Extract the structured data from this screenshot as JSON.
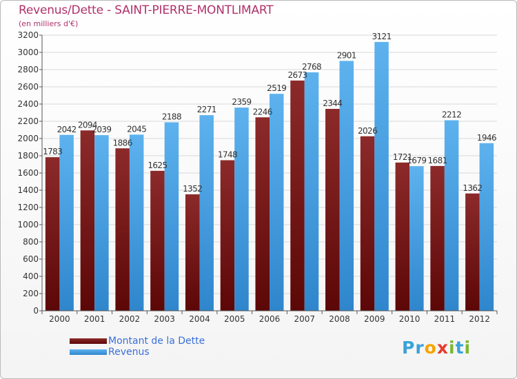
{
  "title": "Revenus/Dette - SAINT-PIERRE-MONTLIMART",
  "subtitle": "(en milliers d'€)",
  "colors": {
    "title": "#b0306a",
    "dette": "#7a1616",
    "revenus": "#3f9fe3",
    "legend_text": "#3a6fd8",
    "axis": "#555555",
    "grid": "#d8d8d8"
  },
  "legend": {
    "dette_label": "Montant de la Dette",
    "revenus_label": "Revenus"
  },
  "logo": {
    "letters": [
      "P",
      "r",
      "o",
      "x",
      "i",
      "t",
      "i"
    ],
    "colors": [
      "#3aa2d8",
      "#3aa2d8",
      "#f6a400",
      "#e53c2e",
      "#7cb82f",
      "#3aa2d8",
      "#7cb82f"
    ]
  },
  "chart_data": {
    "type": "bar",
    "title": "Revenus/Dette - SAINT-PIERRE-MONTLIMART",
    "subtitle": "(en milliers d'€)",
    "categories": [
      "2000",
      "2001",
      "2002",
      "2003",
      "2004",
      "2005",
      "2006",
      "2007",
      "2008",
      "2009",
      "2010",
      "2011",
      "2012"
    ],
    "series": [
      {
        "name": "Montant de la Dette",
        "values": [
          1783,
          2094,
          1886,
          1625,
          1352,
          1748,
          2246,
          2673,
          2344,
          2026,
          1721,
          1681,
          1362
        ]
      },
      {
        "name": "Revenus",
        "values": [
          2042,
          2039,
          2045,
          2188,
          2271,
          2359,
          2519,
          2768,
          2901,
          3121,
          1679,
          2212,
          1946
        ]
      }
    ],
    "ylim": [
      0,
      3200
    ],
    "yticks": [
      0,
      200,
      400,
      600,
      800,
      1000,
      1200,
      1400,
      1600,
      1800,
      2000,
      2200,
      2400,
      2600,
      2800,
      3000,
      3200
    ],
    "grid": true,
    "legend_position": "bottom-left"
  }
}
